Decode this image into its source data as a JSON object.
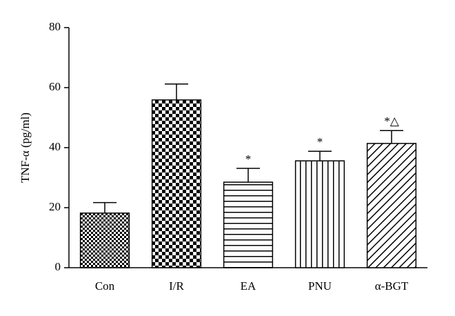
{
  "chart_data": {
    "type": "bar",
    "y_label": "TNF-α (pg/ml)",
    "categories": [
      "Con",
      "I/R",
      "EA",
      "PNU",
      "α-BGT"
    ],
    "values": [
      18.2,
      55.9,
      28.5,
      35.6,
      41.4
    ],
    "errors": [
      3.5,
      5.3,
      4.6,
      3.2,
      4.3
    ],
    "annotations": [
      null,
      null,
      "*",
      "*",
      "*△"
    ],
    "patterns": [
      "checker-small",
      "checker-large",
      "horizontal",
      "vertical",
      "diagonal"
    ],
    "color": "#000000",
    "ylim": [
      0,
      80
    ],
    "yticks": [
      0,
      20,
      40,
      60,
      80
    ]
  }
}
